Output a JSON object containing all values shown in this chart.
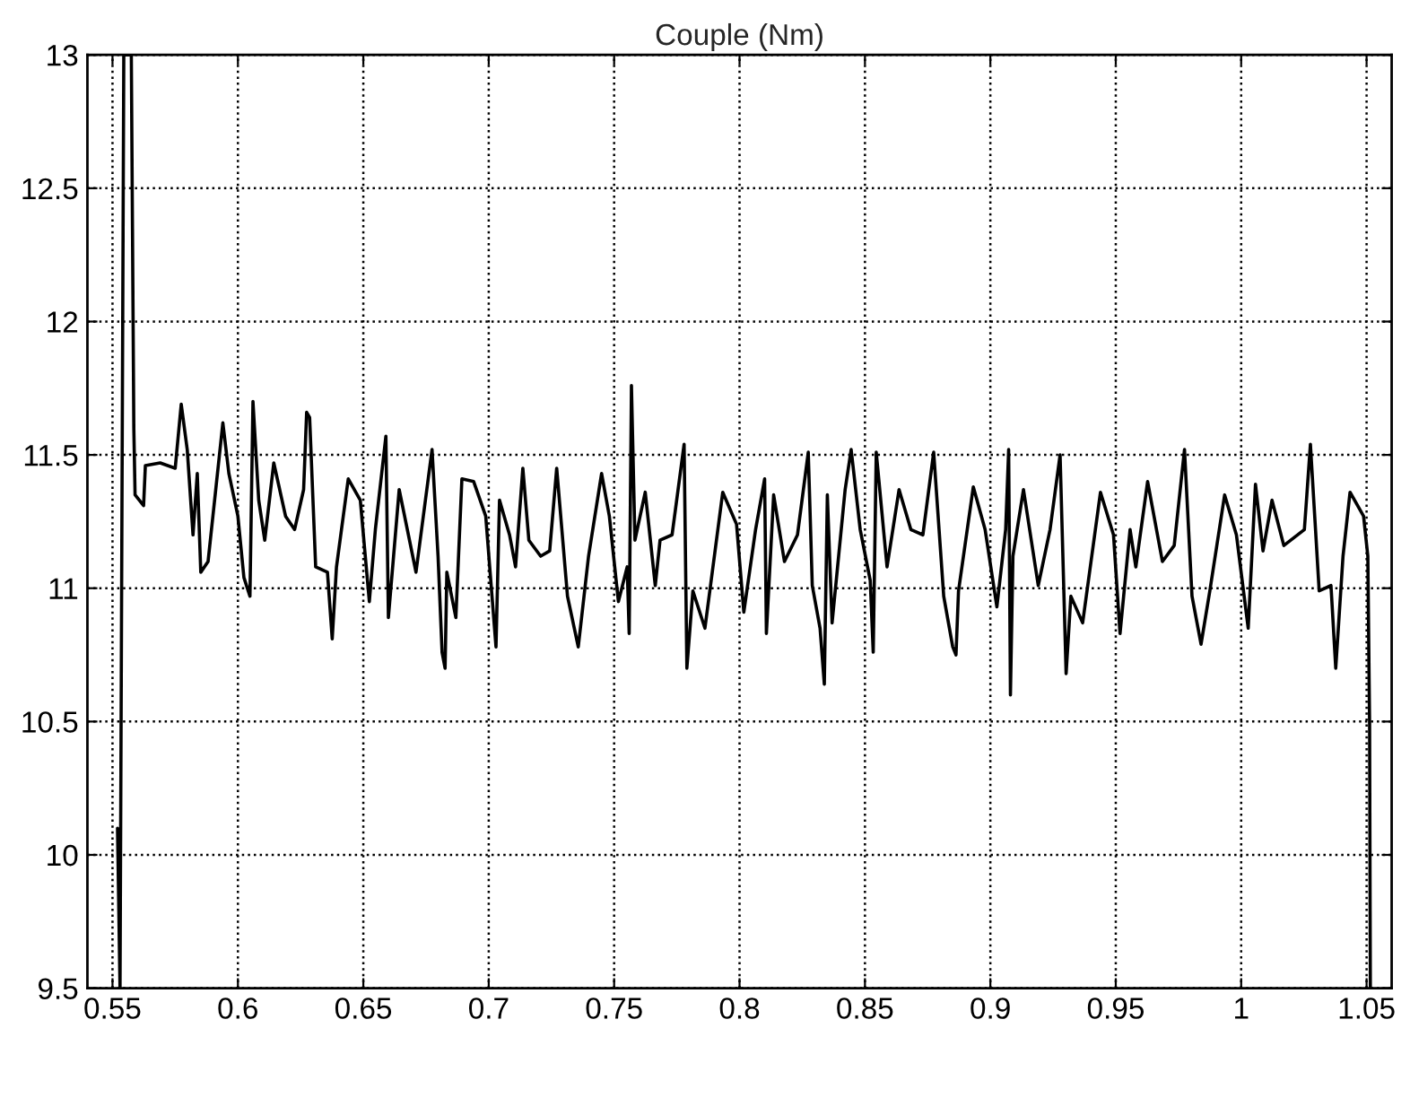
{
  "chart_data": {
    "type": "line",
    "title": "Couple (Nm)",
    "xlim": [
      0.54,
      1.06
    ],
    "ylim": [
      9.5,
      13
    ],
    "xticks": [
      0.55,
      0.6,
      0.65,
      0.7,
      0.75,
      0.8,
      0.85,
      0.9,
      0.95,
      1,
      1.05
    ],
    "yticks": [
      9.5,
      10,
      10.5,
      11,
      11.5,
      12,
      12.5,
      13
    ],
    "grid": true,
    "line_style": "solid",
    "marker": "none",
    "series": [
      {
        "color": "#000000",
        "x": [
          0.552,
          0.553,
          0.5545,
          0.5575,
          0.5585,
          0.559,
          0.5607,
          0.5624,
          0.5631,
          0.569,
          0.575,
          0.5774,
          0.5798,
          0.5821,
          0.5838,
          0.5852,
          0.5881,
          0.594,
          0.5964,
          0.6,
          0.6024,
          0.6048,
          0.606,
          0.6083,
          0.6107,
          0.6143,
          0.619,
          0.6226,
          0.6262,
          0.6274,
          0.6286,
          0.631,
          0.6357,
          0.6376,
          0.6393,
          0.644,
          0.6488,
          0.6524,
          0.6548,
          0.659,
          0.66,
          0.6643,
          0.671,
          0.6774,
          0.6798,
          0.6814,
          0.6826,
          0.6833,
          0.6869,
          0.6893,
          0.694,
          0.6988,
          0.7029,
          0.7043,
          0.7083,
          0.7107,
          0.7136,
          0.716,
          0.7207,
          0.7243,
          0.7271,
          0.7314,
          0.7357,
          0.7398,
          0.745,
          0.7481,
          0.7517,
          0.7552,
          0.756,
          0.7569,
          0.7583,
          0.7624,
          0.7664,
          0.7683,
          0.7731,
          0.7779,
          0.779,
          0.7814,
          0.7862,
          0.7933,
          0.7988,
          0.8017,
          0.8064,
          0.81,
          0.8107,
          0.8136,
          0.8179,
          0.8231,
          0.8274,
          0.829,
          0.8321,
          0.8338,
          0.835,
          0.8369,
          0.8421,
          0.8445,
          0.8481,
          0.8521,
          0.8533,
          0.8545,
          0.8588,
          0.8636,
          0.8683,
          0.8731,
          0.8774,
          0.8814,
          0.885,
          0.8863,
          0.8873,
          0.8932,
          0.8979,
          0.9026,
          0.9061,
          0.9073,
          0.908,
          0.909,
          0.9132,
          0.9191,
          0.9238,
          0.9278,
          0.9302,
          0.9321,
          0.9368,
          0.9439,
          0.9491,
          0.9517,
          0.9557,
          0.958,
          0.9627,
          0.9686,
          0.9733,
          0.9774,
          0.9804,
          0.984,
          0.9875,
          0.9934,
          0.9981,
          1.0028,
          1.0057,
          1.0087,
          1.0123,
          1.017,
          1.0252,
          1.0276,
          1.0311,
          1.0358,
          1.0377,
          1.0406,
          1.0434,
          1.0488,
          1.0505,
          1.0512,
          1.0515
        ],
        "values": [
          10.1,
          9.5,
          13,
          13,
          11.6,
          11.35,
          11.33,
          11.31,
          11.46,
          11.47,
          11.45,
          11.69,
          11.52,
          11.2,
          11.43,
          11.06,
          11.1,
          11.62,
          11.43,
          11.27,
          11.04,
          10.97,
          11.7,
          11.33,
          11.18,
          11.47,
          11.27,
          11.22,
          11.37,
          11.66,
          11.64,
          11.08,
          11.06,
          10.81,
          11.08,
          11.41,
          11.33,
          10.95,
          11.22,
          11.57,
          10.89,
          11.37,
          11.06,
          11.52,
          11.12,
          10.76,
          10.7,
          11.06,
          10.89,
          11.41,
          11.4,
          11.27,
          10.78,
          11.33,
          11.2,
          11.08,
          11.45,
          11.18,
          11.12,
          11.14,
          11.45,
          10.97,
          10.78,
          11.12,
          11.43,
          11.27,
          10.95,
          11.08,
          10.83,
          11.76,
          11.18,
          11.36,
          11.01,
          11.18,
          11.2,
          11.54,
          10.7,
          10.99,
          10.85,
          11.36,
          11.24,
          10.91,
          11.22,
          11.41,
          10.83,
          11.35,
          11.1,
          11.2,
          11.51,
          11.01,
          10.85,
          10.64,
          11.35,
          10.87,
          11.37,
          11.52,
          11.22,
          11.03,
          10.76,
          11.51,
          11.08,
          11.37,
          11.22,
          11.2,
          11.51,
          10.97,
          10.78,
          10.75,
          10.99,
          11.38,
          11.22,
          10.93,
          11.22,
          11.52,
          10.6,
          11.12,
          11.37,
          11.01,
          11.22,
          11.5,
          10.68,
          10.97,
          10.87,
          11.36,
          11.2,
          10.83,
          11.22,
          11.08,
          11.4,
          11.1,
          11.16,
          11.52,
          10.97,
          10.79,
          10.99,
          11.35,
          11.2,
          10.85,
          11.39,
          11.14,
          11.33,
          11.16,
          11.22,
          11.54,
          10.99,
          11.01,
          10.7,
          11.12,
          11.36,
          11.27,
          11.12,
          10.49,
          9.5
        ]
      }
    ]
  }
}
